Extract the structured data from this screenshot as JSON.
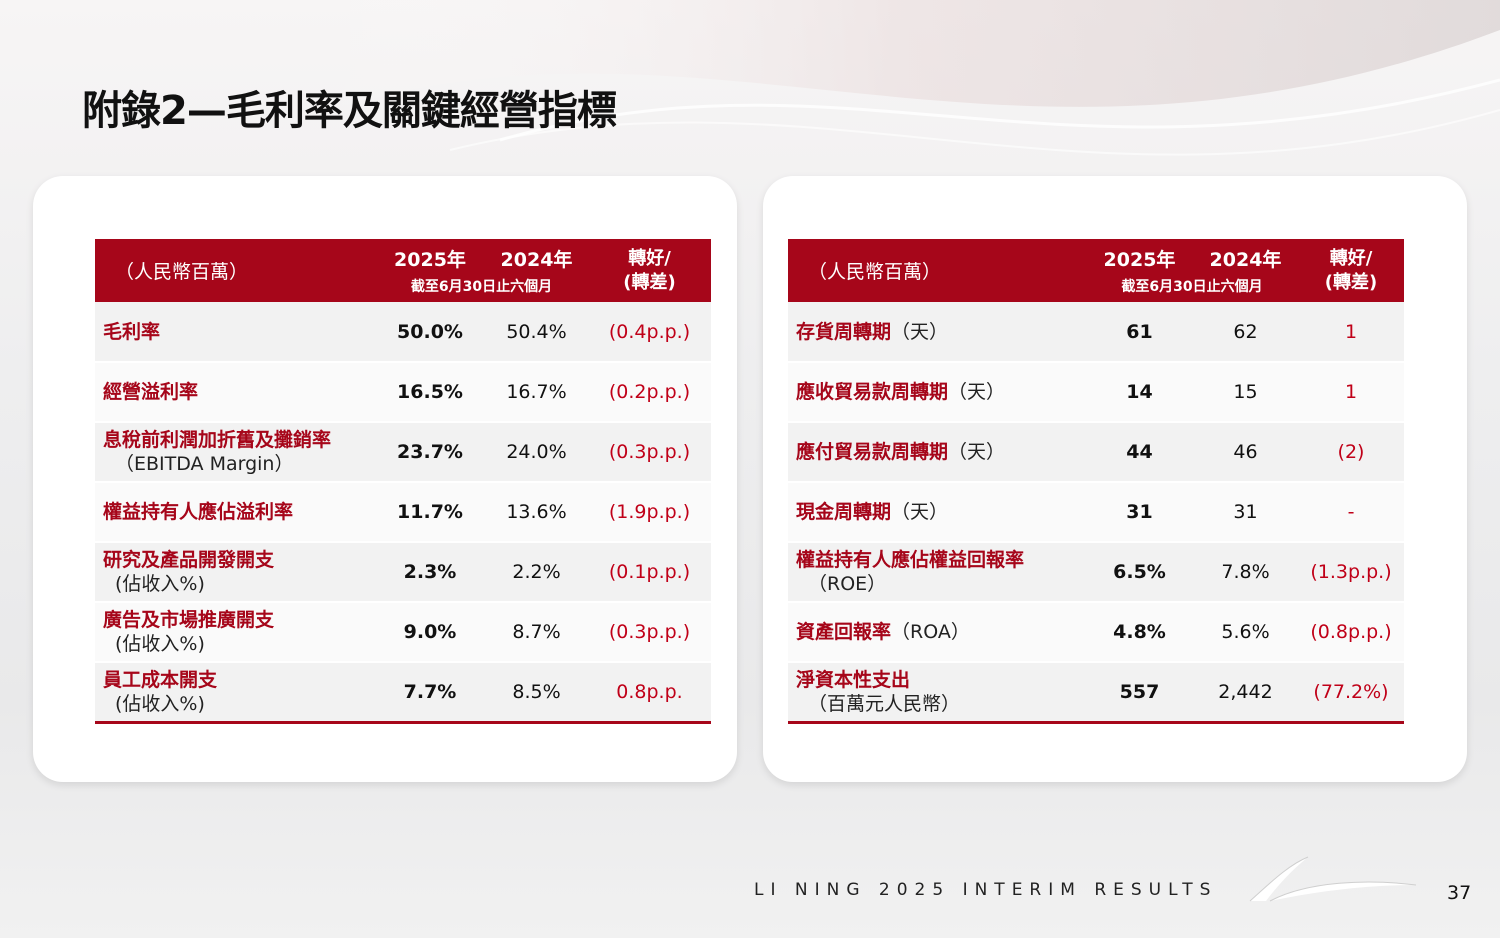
{
  "title": "附錄2—毛利率及關鍵經營指標",
  "colors": {
    "accent": "#a6061a",
    "negative": "#c00018"
  },
  "header": {
    "unit": "（人民幣百萬）",
    "year_current": "2025年",
    "year_prior": "2024年",
    "period": "截至6月30日止六個月",
    "change_line1": "轉好/",
    "change_line2": "(轉差)"
  },
  "left_table": [
    {
      "label": "毛利率",
      "sub": "",
      "current": "50.0%",
      "prior": "50.4%",
      "change": "(0.4p.p.)"
    },
    {
      "label": "經營溢利率",
      "sub": "",
      "current": "16.5%",
      "prior": "16.7%",
      "change": "(0.2p.p.)"
    },
    {
      "label": "息稅前利潤加折舊及攤銷率",
      "sub": "（EBITDA Margin）",
      "current": "23.7%",
      "prior": "24.0%",
      "change": "(0.3p.p.)"
    },
    {
      "label": "權益持有人應佔溢利率",
      "sub": "",
      "current": "11.7%",
      "prior": "13.6%",
      "change": "(1.9p.p.)"
    },
    {
      "label": "研究及產品開發開支",
      "sub": "(佔收入%)",
      "current": "2.3%",
      "prior": "2.2%",
      "change": "(0.1p.p.)"
    },
    {
      "label": "廣告及市場推廣開支",
      "sub": "(佔收入%)",
      "current": "9.0%",
      "prior": "8.7%",
      "change": "(0.3p.p.)"
    },
    {
      "label": "員工成本開支",
      "sub": "(佔收入%)",
      "current": "7.7%",
      "prior": "8.5%",
      "change": "0.8p.p."
    }
  ],
  "right_table": [
    {
      "label": "存貨周轉期",
      "inline": "（天）",
      "sub": "",
      "current": "61",
      "prior": "62",
      "change": "1"
    },
    {
      "label": "應收貿易款周轉期",
      "inline": "（天）",
      "sub": "",
      "current": "14",
      "prior": "15",
      "change": "1"
    },
    {
      "label": "應付貿易款周轉期",
      "inline": "（天）",
      "sub": "",
      "current": "44",
      "prior": "46",
      "change": "(2)"
    },
    {
      "label": "現金周轉期",
      "inline": "（天）",
      "sub": "",
      "current": "31",
      "prior": "31",
      "change": "-"
    },
    {
      "label": "權益持有人應佔權益回報率",
      "inline": "",
      "sub": "（ROE）",
      "current": "6.5%",
      "prior": "7.8%",
      "change": "(1.3p.p.)"
    },
    {
      "label": "資產回報率",
      "inline": "（ROA）",
      "sub": "",
      "current": "4.8%",
      "prior": "5.6%",
      "change": "(0.8p.p.)"
    },
    {
      "label": "淨資本性支出",
      "inline": "",
      "sub": "（百萬元人民幣）",
      "current": "557",
      "prior": "2,442",
      "change": "(77.2%)"
    }
  ],
  "footer": {
    "text": "LI NING 2025 INTERIM RESULTS",
    "page": "37"
  }
}
